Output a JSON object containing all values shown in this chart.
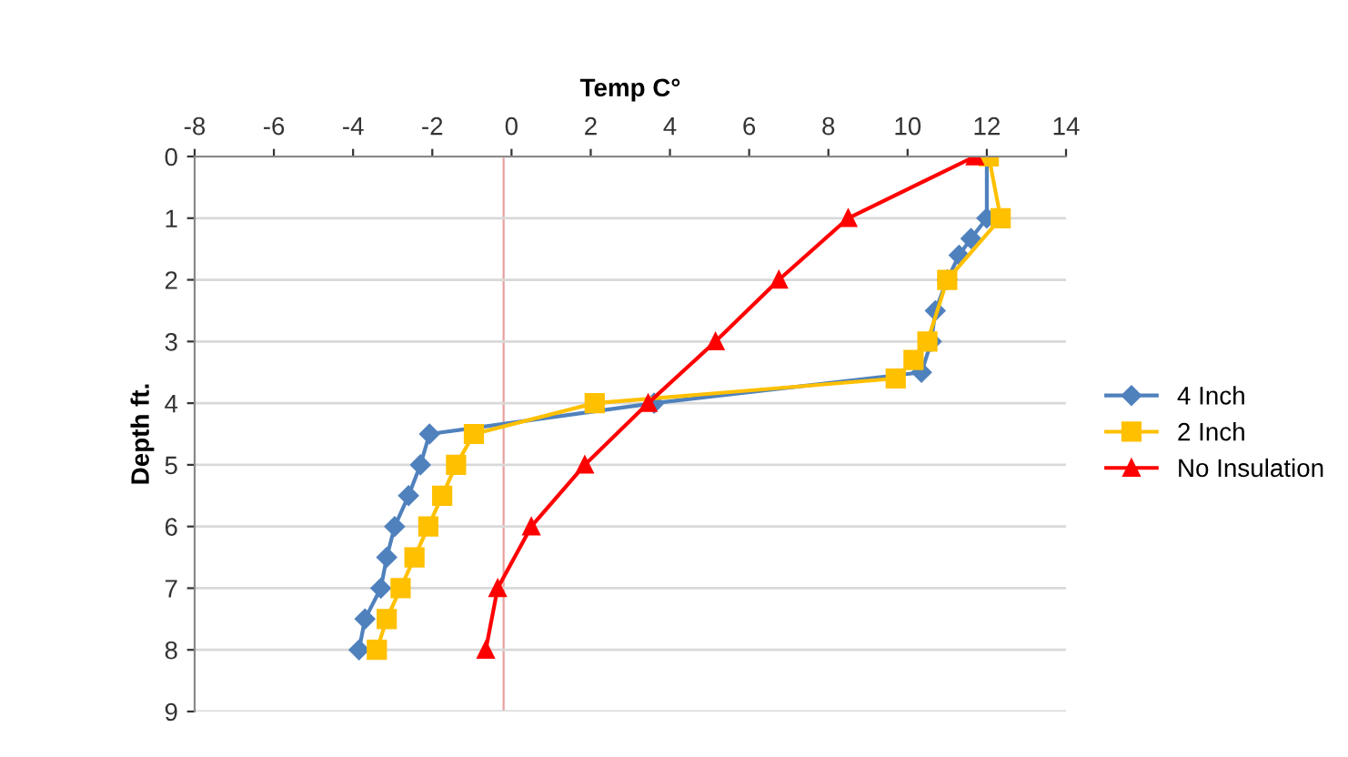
{
  "chart_data": {
    "type": "line",
    "xlabel": "Temp C°",
    "ylabel": "Depth ft.",
    "xlim": [
      -8,
      14
    ],
    "xticks": [
      -8,
      -6,
      -4,
      -2,
      0,
      2,
      4,
      6,
      8,
      10,
      12,
      14
    ],
    "ylim": [
      9,
      0
    ],
    "yticks": [
      0,
      1,
      2,
      3,
      4,
      5,
      6,
      7,
      8,
      9
    ],
    "grid": "y",
    "legend": "right",
    "ref_lines": [
      {
        "axis": "x",
        "value": -0.2,
        "color": "#e8a0a0"
      }
    ],
    "series": [
      {
        "name": "4 Inch",
        "color": "#4f81bd",
        "marker": "diamond",
        "x": [
          12.0,
          12.0,
          11.6,
          11.3,
          11.0,
          10.7,
          10.6,
          10.35,
          3.6,
          -2.07,
          -2.3,
          -2.6,
          -2.95,
          -3.15,
          -3.3,
          -3.7,
          -3.85
        ],
        "values": [
          0,
          1,
          1.33,
          1.6,
          2,
          2.5,
          3,
          3.5,
          4,
          4.5,
          5,
          5.5,
          6,
          6.5,
          7,
          7.5,
          8
        ]
      },
      {
        "name": "2 Inch",
        "color": "#ffc000",
        "marker": "square",
        "x": [
          12.05,
          12.35,
          11.0,
          10.5,
          10.15,
          9.7,
          2.1,
          -0.95,
          -1.4,
          -1.75,
          -2.1,
          -2.45,
          -2.8,
          -3.15,
          -3.4
        ],
        "values": [
          0,
          1,
          2,
          3,
          3.3,
          3.6,
          4,
          4.5,
          5,
          5.5,
          6,
          6.5,
          7,
          7.5,
          8
        ]
      },
      {
        "name": "No Insulation",
        "color": "#ff0000",
        "marker": "triangle",
        "x": [
          11.7,
          8.5,
          6.75,
          5.15,
          3.45,
          1.85,
          0.5,
          -0.35,
          -0.65
        ],
        "values": [
          0,
          1,
          2,
          3,
          4,
          5,
          6,
          7,
          8
        ]
      }
    ]
  }
}
